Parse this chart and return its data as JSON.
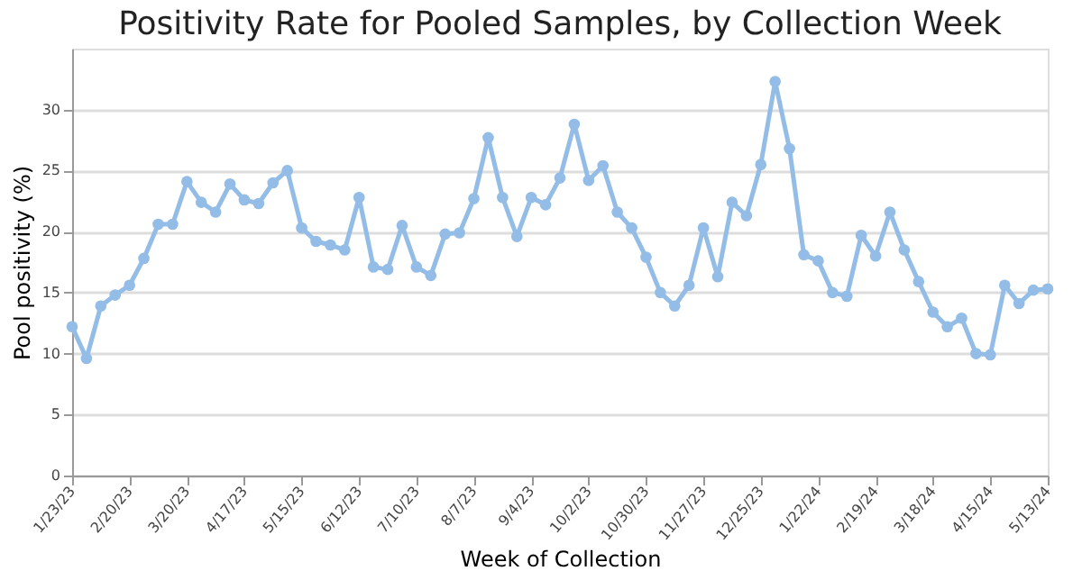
{
  "chart_data": {
    "type": "line",
    "title": "Positivity Rate for Pooled Samples, by Collection Week",
    "xlabel": "Week of Collection",
    "ylabel": "Pool positivity (%)",
    "x": [
      "2023-01-23",
      "2023-01-30",
      "2023-02-06",
      "2023-02-13",
      "2023-02-20",
      "2023-02-27",
      "2023-03-06",
      "2023-03-13",
      "2023-03-20",
      "2023-03-27",
      "2023-04-03",
      "2023-04-10",
      "2023-04-17",
      "2023-04-24",
      "2023-05-01",
      "2023-05-08",
      "2023-05-15",
      "2023-05-22",
      "2023-05-29",
      "2023-06-05",
      "2023-06-12",
      "2023-06-19",
      "2023-06-26",
      "2023-07-03",
      "2023-07-10",
      "2023-07-17",
      "2023-07-24",
      "2023-07-31",
      "2023-08-07",
      "2023-08-14",
      "2023-08-21",
      "2023-08-28",
      "2023-09-04",
      "2023-09-11",
      "2023-09-18",
      "2023-09-25",
      "2023-10-02",
      "2023-10-09",
      "2023-10-16",
      "2023-10-23",
      "2023-10-30",
      "2023-11-06",
      "2023-11-13",
      "2023-11-20",
      "2023-11-27",
      "2023-12-04",
      "2023-12-11",
      "2023-12-18",
      "2023-12-25",
      "2024-01-01",
      "2024-01-08",
      "2024-01-15",
      "2024-01-22",
      "2024-01-29",
      "2024-02-05",
      "2024-02-12",
      "2024-02-19",
      "2024-02-26",
      "2024-03-04",
      "2024-03-11",
      "2024-03-18",
      "2024-03-25",
      "2024-04-01",
      "2024-04-08",
      "2024-04-15",
      "2024-04-22",
      "2024-04-29",
      "2024-05-06",
      "2024-05-13"
    ],
    "series": [
      {
        "color": "#93bde6",
        "values": [
          12.2,
          9.6,
          13.9,
          14.8,
          15.6,
          17.8,
          20.6,
          20.6,
          24.1,
          22.4,
          21.6,
          23.9,
          22.6,
          22.3,
          24.0,
          25.0,
          20.3,
          19.2,
          18.9,
          18.5,
          22.8,
          17.1,
          16.9,
          20.5,
          17.1,
          16.4,
          19.8,
          19.9,
          22.7,
          27.7,
          22.8,
          19.6,
          22.8,
          22.2,
          24.4,
          28.8,
          24.2,
          25.4,
          21.6,
          20.3,
          17.9,
          15.0,
          13.9,
          15.6,
          20.3,
          16.3,
          22.4,
          21.3,
          25.5,
          32.3,
          26.8,
          18.1,
          17.6,
          15.0,
          14.7,
          19.7,
          18.0,
          21.6,
          18.5,
          15.9,
          13.4,
          12.2,
          12.9,
          10.0,
          9.9,
          15.6,
          14.1,
          15.2,
          15.3
        ]
      }
    ],
    "xlim": [
      "2023-01-23",
      "2024-05-13"
    ],
    "xticks": [
      {
        "value": "2023-01-23",
        "label": "1/23/23"
      },
      {
        "value": "2023-02-20",
        "label": "2/20/23"
      },
      {
        "value": "2023-03-20",
        "label": "3/20/23"
      },
      {
        "value": "2023-04-17",
        "label": "4/17/23"
      },
      {
        "value": "2023-05-15",
        "label": "5/15/23"
      },
      {
        "value": "2023-06-12",
        "label": "6/12/23"
      },
      {
        "value": "2023-07-10",
        "label": "7/10/23"
      },
      {
        "value": "2023-08-07",
        "label": "8/7/23"
      },
      {
        "value": "2023-09-04",
        "label": "9/4/23"
      },
      {
        "value": "2023-10-02",
        "label": "10/2/23"
      },
      {
        "value": "2023-10-30",
        "label": "10/30/23"
      },
      {
        "value": "2023-11-27",
        "label": "11/27/23"
      },
      {
        "value": "2023-12-25",
        "label": "12/25/23"
      },
      {
        "value": "2024-01-22",
        "label": "1/22/24"
      },
      {
        "value": "2024-02-19",
        "label": "2/19/24"
      },
      {
        "value": "2024-03-18",
        "label": "3/18/24"
      },
      {
        "value": "2024-04-15",
        "label": "4/15/24"
      },
      {
        "value": "2024-05-13",
        "label": "5/13/24"
      }
    ],
    "ylim": [
      0,
      35
    ],
    "yticks": [
      0,
      5,
      10,
      15,
      20,
      25,
      30
    ],
    "grid": "y",
    "marker": "circle",
    "line_style": "solid",
    "legend": false
  }
}
